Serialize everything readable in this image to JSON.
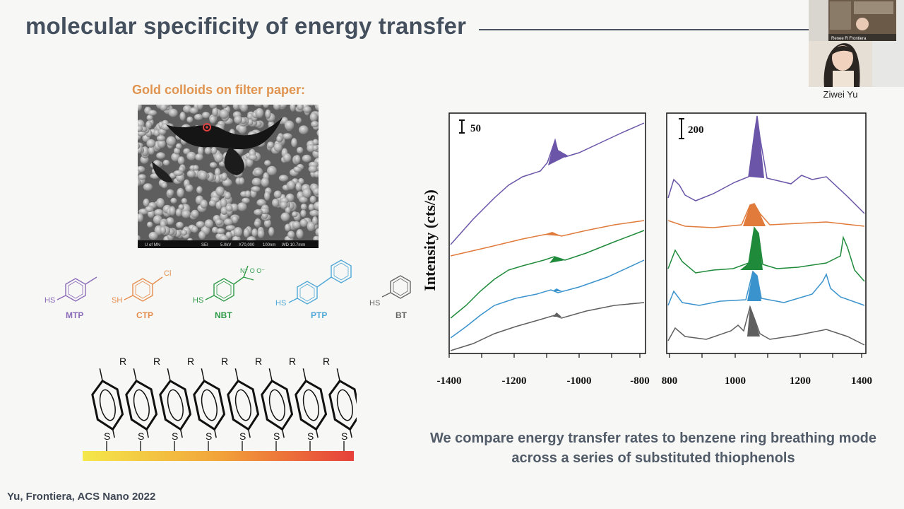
{
  "slide": {
    "title": "molecular specificity of energy transfer",
    "sem": {
      "caption": "Gold colloids on filter paper:",
      "footer": [
        "U of MN",
        "SEI",
        "5.0kV",
        "X70,000",
        "100nm",
        "WD 10.7mm"
      ]
    },
    "molecules": [
      {
        "name": "MTP",
        "substituent": "",
        "sh": "HS",
        "color": "#8b6bb8"
      },
      {
        "name": "CTP",
        "substituent": "Cl",
        "sh": "SH",
        "color": "#e58d4d"
      },
      {
        "name": "NBT",
        "substituent": "N⁺ O O⁻",
        "sh": "HS",
        "color": "#2f9a47"
      },
      {
        "name": "PTP",
        "substituent": "",
        "sh": "HS",
        "color": "#4fa8d6"
      },
      {
        "name": "BT",
        "substituent": "",
        "sh": "HS",
        "color": "#666666"
      }
    ],
    "sam": {
      "r_label": "R",
      "s_label": "S",
      "count": 8
    },
    "spectra": {
      "ylabel": "Intensity (cts/s)",
      "left_scale_bar": "50",
      "right_scale_bar": "200",
      "left_ticks": [
        "-1400",
        "-1200",
        "-1000",
        "-800"
      ],
      "right_ticks": [
        "800",
        "1000",
        "1200",
        "1400"
      ],
      "series_colors": [
        "#6a55a8",
        "#e07b3c",
        "#1e8a3a",
        "#3b93cd",
        "#5f5f5f"
      ]
    },
    "conclusion": "We compare energy transfer rates to benzene ring breathing mode across a series of substituted thiophenols",
    "citation": "Yu, Frontiera, ACS Nano 2022"
  },
  "video": {
    "speaker_name": "Ziwei Yu",
    "host_label": "Renee R Frontiera"
  }
}
